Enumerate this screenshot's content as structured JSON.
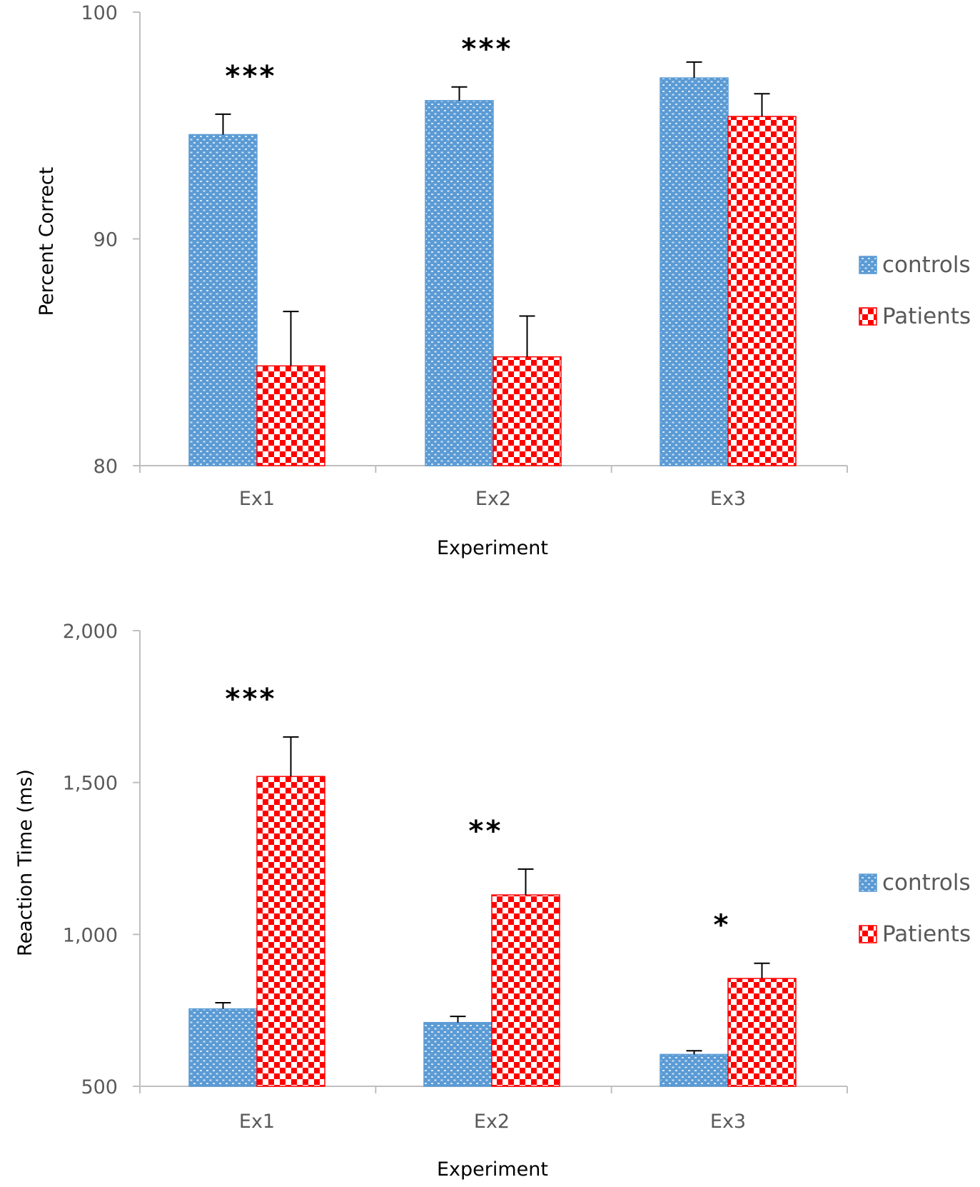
{
  "colors": {
    "controls": "#5B9BD5",
    "patients": "#FF0000",
    "axis": "#bfbfbf",
    "text": "#595959",
    "error_bar": "#000000"
  },
  "chart_data": [
    {
      "type": "bar",
      "title": "",
      "categories": [
        "Ex1",
        "Ex2",
        "Ex3"
      ],
      "series": [
        {
          "name": "controls",
          "values": [
            94.6,
            96.1,
            97.1
          ],
          "errors": [
            0.9,
            0.6,
            0.7
          ]
        },
        {
          "name": "Patients",
          "values": [
            84.4,
            84.8,
            95.4
          ],
          "errors": [
            2.4,
            1.8,
            1.0
          ]
        }
      ],
      "significance": [
        "***",
        "***",
        ""
      ],
      "xlabel": "Experiment",
      "ylabel": "Percent Correct",
      "ylim": [
        80,
        100
      ],
      "yticks": [
        "80",
        "90",
        "100"
      ],
      "ytick_values": [
        80,
        90,
        100
      ],
      "legend": [
        "controls",
        "Patients"
      ],
      "legend_position": "right"
    },
    {
      "type": "bar",
      "title": "",
      "categories": [
        "Ex1",
        "Ex2",
        "Ex3"
      ],
      "series": [
        {
          "name": "controls",
          "values": [
            755,
            710,
            605
          ],
          "errors": [
            20,
            20,
            12
          ]
        },
        {
          "name": "Patients",
          "values": [
            1520,
            1130,
            855
          ],
          "errors": [
            130,
            85,
            50
          ]
        }
      ],
      "significance": [
        "***",
        "**",
        "*"
      ],
      "xlabel": "Experiment",
      "ylabel": "Reaction Time (ms)",
      "ylim": [
        500,
        2000
      ],
      "yticks": [
        "500",
        "1,000",
        "1,500",
        "2,000"
      ],
      "ytick_values": [
        500,
        1000,
        1500,
        2000
      ],
      "legend": [
        "controls",
        "Patients"
      ],
      "legend_position": "right"
    }
  ]
}
